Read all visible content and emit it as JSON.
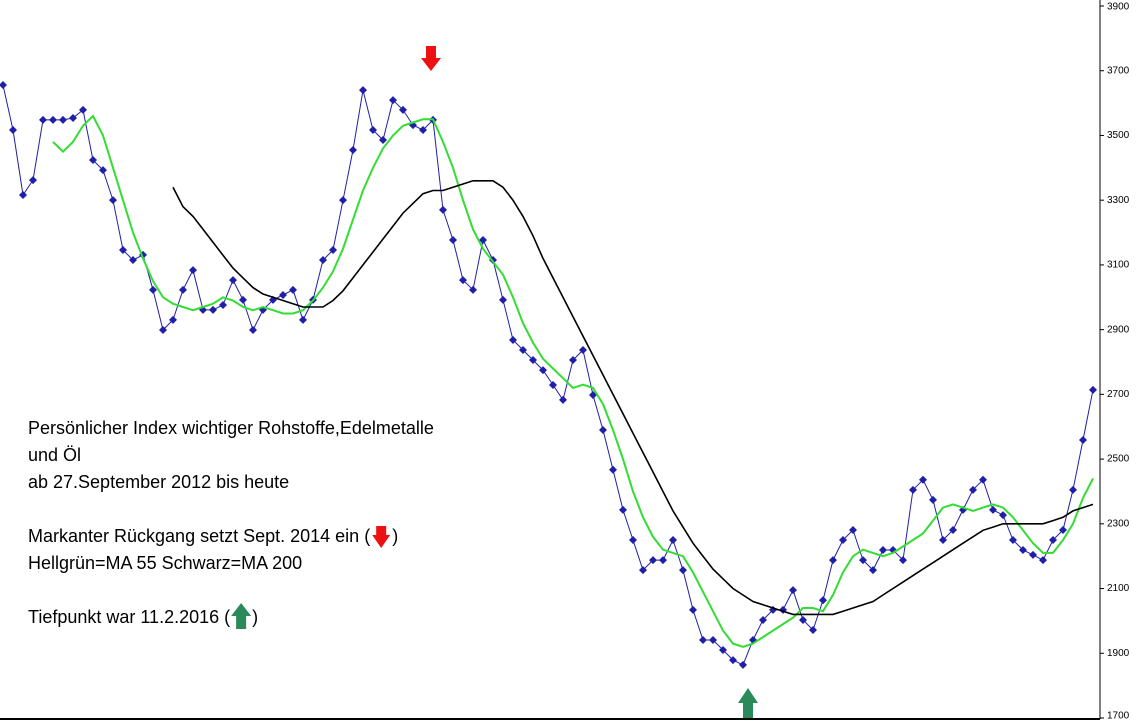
{
  "chart_data": {
    "type": "line",
    "annotations": [
      "Persönlicher Index wichtiger Rohstoffe,Edelmetalle",
      "und Öl",
      "ab 27.September 2012 bis heute",
      "Markanter Rückgang setzt Sept. 2014 ein (",
      ")",
      "Hellgrün=MA 55  Schwarz=MA 200",
      "Tiefpunkt war 11.2.2016 (",
      ")"
    ],
    "categories": [
      null,
      null,
      null,
      null,
      null,
      null,
      null,
      null,
      null,
      null,
      null,
      null,
      null,
      null,
      null,
      null,
      null,
      null,
      null,
      null,
      null,
      null,
      null,
      null,
      null,
      null,
      null,
      null,
      null,
      null,
      null,
      null,
      null,
      null,
      null,
      null,
      null,
      null,
      null,
      null,
      null,
      null,
      null,
      null,
      null,
      null,
      null,
      null,
      null,
      null,
      null,
      null,
      null,
      null,
      null,
      null,
      null,
      null,
      null,
      null,
      null,
      null,
      null,
      null,
      null,
      null,
      null,
      null,
      null,
      null,
      null,
      null,
      null,
      null,
      null,
      null,
      null,
      null,
      null,
      null,
      null,
      null,
      null,
      null,
      null,
      null,
      null,
      null,
      null,
      null,
      null,
      null,
      null,
      null,
      null,
      null,
      null,
      null,
      null,
      null,
      null,
      null,
      null,
      null,
      null,
      null,
      null,
      null,
      null,
      null
    ],
    "series": [
      {
        "color": "#1f1fa8",
        "marker": "diamond",
        "values": [
          3656,
          3517,
          3316,
          3362,
          3548,
          3548,
          3548,
          3554,
          3579,
          3424,
          3393,
          3300,
          3146,
          3115,
          3131,
          3023,
          2899,
          2930,
          3023,
          3084,
          2961,
          2961,
          2976,
          3053,
          2992,
          2899,
          2961,
          2992,
          3007,
          3023,
          2930,
          2992,
          3115,
          3146,
          3300,
          3455,
          3640,
          3517,
          3486,
          3609,
          3579,
          3532,
          3517,
          3548,
          3270,
          3177,
          3053,
          3023,
          3177,
          3115,
          2992,
          2868,
          2837,
          2806,
          2775,
          2729,
          2683,
          2806,
          2837,
          2698,
          2590,
          2467,
          2343,
          2250,
          2157,
          2188,
          2188,
          2250,
          2157,
          2034,
          1941,
          1941,
          1910,
          1879,
          1864,
          1941,
          2003,
          2034,
          2034,
          2095,
          2003,
          1972,
          2064,
          2188,
          2250,
          2281,
          2188,
          2157,
          2219,
          2219,
          2188,
          2405,
          2436,
          2374,
          2250,
          2281,
          2343,
          2405,
          2436,
          2343,
          2327,
          2250,
          2219,
          2204,
          2188,
          2250,
          2281,
          2405,
          2559,
          2714
        ]
      },
      {
        "name": "MA 55",
        "color": "#33dd33",
        "values": [
          null,
          null,
          null,
          null,
          null,
          3480,
          3450,
          3480,
          3530,
          3560,
          3500,
          3400,
          3300,
          3200,
          3120,
          3050,
          3000,
          2980,
          2970,
          2960,
          2970,
          2980,
          3000,
          2990,
          2970,
          2960,
          2970,
          2960,
          2950,
          2950,
          2960,
          2990,
          3030,
          3080,
          3150,
          3240,
          3330,
          3400,
          3460,
          3500,
          3530,
          3540,
          3550,
          3550,
          3480,
          3400,
          3300,
          3210,
          3150,
          3110,
          3070,
          3000,
          2920,
          2860,
          2810,
          2780,
          2750,
          2720,
          2730,
          2720,
          2670,
          2590,
          2500,
          2400,
          2320,
          2260,
          2220,
          2210,
          2200,
          2150,
          2090,
          2030,
          1970,
          1930,
          1920,
          1930,
          1950,
          1970,
          1990,
          2010,
          2040,
          2040,
          2030,
          2080,
          2150,
          2200,
          2220,
          2210,
          2200,
          2210,
          2230,
          2250,
          2270,
          2310,
          2350,
          2360,
          2350,
          2340,
          2350,
          2360,
          2350,
          2320,
          2280,
          2240,
          2210,
          2210,
          2250,
          2300,
          2380,
          2440
        ]
      },
      {
        "name": "MA 200",
        "color": "#000000",
        "values": [
          null,
          null,
          null,
          null,
          null,
          null,
          null,
          null,
          null,
          null,
          null,
          null,
          null,
          null,
          null,
          null,
          null,
          3340,
          3280,
          3250,
          3210,
          3170,
          3130,
          3090,
          3060,
          3030,
          3010,
          3000,
          2990,
          2980,
          2970,
          2970,
          2970,
          2990,
          3020,
          3060,
          3100,
          3140,
          3180,
          3220,
          3260,
          3290,
          3320,
          3330,
          3330,
          3340,
          3350,
          3360,
          3360,
          3360,
          3340,
          3300,
          3250,
          3190,
          3120,
          3060,
          3000,
          2940,
          2880,
          2820,
          2760,
          2700,
          2640,
          2580,
          2520,
          2460,
          2400,
          2340,
          2290,
          2240,
          2200,
          2160,
          2130,
          2100,
          2080,
          2060,
          2050,
          2040,
          2030,
          2020,
          2020,
          2020,
          2020,
          2020,
          2030,
          2040,
          2050,
          2060,
          2080,
          2100,
          2120,
          2140,
          2160,
          2180,
          2200,
          2220,
          2240,
          2260,
          2280,
          2290,
          2300,
          2300,
          2300,
          2300,
          2300,
          2310,
          2320,
          2340,
          2350,
          2360
        ]
      }
    ],
    "ylim": [
      1700,
      3900
    ],
    "yticks": [
      1700,
      1900,
      2100,
      2300,
      2500,
      2700,
      2900,
      3100,
      3300,
      3500,
      3700,
      3900
    ]
  }
}
